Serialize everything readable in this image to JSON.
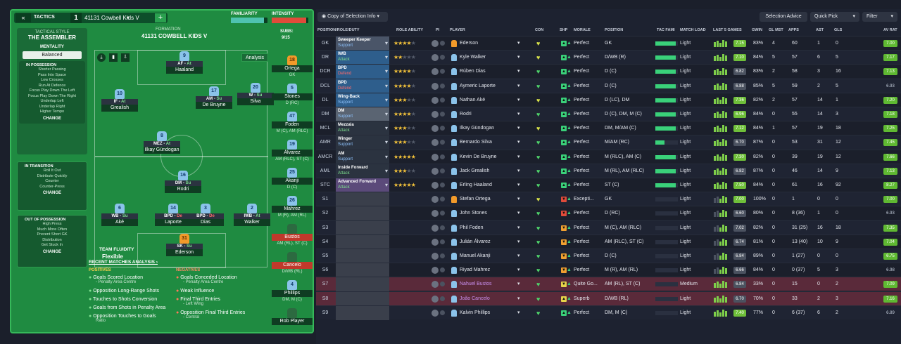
{
  "header": {
    "back": "«",
    "tactics_label": "TACTICS",
    "slot": "1",
    "tactic_name": "41131 Cowbell Kids V",
    "add": "+",
    "familiarity": "FAMILIARITY",
    "intensity": "INTENSITY"
  },
  "style": {
    "heading": "TACTICAL STYLE",
    "name": "THE ASSEMBLER",
    "mentality_label": "MENTALITY",
    "mentality": "Balanced"
  },
  "in_possession": {
    "title": "IN POSSESSION",
    "items": [
      "Shorter Passing",
      "Pass Into Space",
      "Low Crosses",
      "Run At Defence",
      "Focus Play Down The Left",
      "Focus Play Down The Right",
      "Underlap Left",
      "Underlap Right",
      "Higher Tempo"
    ],
    "change": "CHANGE"
  },
  "in_transition": {
    "title": "IN TRANSITION",
    "items": [
      "Roll It Out",
      "Distribute Quickly",
      "Counter",
      "Counter-Press"
    ],
    "change": "CHANGE"
  },
  "out_possession": {
    "title": "OUT OF POSSESSION",
    "items": [
      "High Press",
      "Much More Often",
      "Prevent Short GK",
      "Distribution",
      "Get Stuck In"
    ],
    "change": "CHANGE"
  },
  "formation": {
    "label": "FORMATION",
    "name": "41131 COWBELL KIDS V",
    "subs_label": "SUBS:",
    "subs_count": "9/15",
    "analysis": "Analysis",
    "fluidity_label": "TEAM FLUIDITY",
    "fluidity": "Flexible"
  },
  "pitch_players": [
    {
      "num": "9",
      "role": "AF",
      "duty": "At",
      "name": "Haaland"
    },
    {
      "num": "10",
      "role": "IF",
      "duty": "At",
      "name": "Grealish"
    },
    {
      "num": "17",
      "role": "AM",
      "duty": "Su",
      "name": "De Bruyne"
    },
    {
      "num": "20",
      "role": "W",
      "duty": "Su",
      "name": "Silva"
    },
    {
      "num": "8",
      "role": "MEZ",
      "duty": "At",
      "name": "Ilkay Gündogan"
    },
    {
      "num": "16",
      "role": "DM",
      "duty": "Su",
      "name": "Rodri"
    },
    {
      "num": "6",
      "role": "WB",
      "duty": "Su",
      "name": "Aké"
    },
    {
      "num": "14",
      "role": "BPD",
      "duty": "De",
      "name": "Laporte"
    },
    {
      "num": "3",
      "role": "BPD",
      "duty": "De",
      "name": "Dias"
    },
    {
      "num": "2",
      "role": "IWB",
      "duty": "At",
      "name": "Walker"
    },
    {
      "num": "31",
      "role": "SK",
      "duty": "Su",
      "name": "Ederson"
    }
  ],
  "subs": [
    {
      "num": "18",
      "name": "Ortega",
      "pos": "GK"
    },
    {
      "num": "5",
      "name": "Stones",
      "pos": "D (RC)"
    },
    {
      "num": "47",
      "name": "Foden",
      "pos": "M (C), AM (RLC)"
    },
    {
      "num": "19",
      "name": "Álvarez",
      "pos": "AM (RLC), ST (C)"
    },
    {
      "num": "25",
      "name": "Akanji",
      "pos": "D (C)"
    },
    {
      "num": "26",
      "name": "Mahrez",
      "pos": "M (R), AM (RL)"
    },
    {
      "num": "",
      "name": "Bustos",
      "pos": "AM (RL), ST (C)"
    },
    {
      "num": "",
      "name": "Cancelo",
      "pos": "D/WB (RL)"
    },
    {
      "num": "4",
      "name": "Phillips",
      "pos": "DM, M (C)"
    },
    {
      "num": "",
      "name": "Rob Player",
      "pos": ""
    }
  ],
  "analysis": {
    "title": "RECENT MATCHES ANALYSIS ›",
    "positives_label": "POSITIVES",
    "negatives_label": "NEGATIVES",
    "positives": [
      {
        "t": "Goals Scored Location",
        "s": "- Penalty Area Centre"
      },
      {
        "t": "Opposition Long-Range Shots",
        "s": ""
      },
      {
        "t": "Touches to Shots Conversion",
        "s": ""
      },
      {
        "t": "Goals from Shots in Penalty Area",
        "s": ""
      },
      {
        "t": "Opposition Touches to Goals",
        "s": "Ratio"
      }
    ],
    "negatives": [
      {
        "t": "Goals Conceded Location",
        "s": "- Penalty Area Centre"
      },
      {
        "t": "Weak Influence",
        "s": ""
      },
      {
        "t": "Final Third Entries",
        "s": "- Left Wing"
      },
      {
        "t": "Opposition Final Third Entries",
        "s": "- Central"
      }
    ]
  },
  "toolbar": {
    "copy": "Copy of Selection Info",
    "selection_advice": "Selection Advice",
    "quick_pick": "Quick Pick",
    "filter": "Filter"
  },
  "columns": {
    "posrole": "POSITION/ROLE/DUTY",
    "ability": "ROLE ABILITY",
    "pi": "PI",
    "player": "PLAYER",
    "con": "CON",
    "shp": "SHP",
    "morale": "MORALE",
    "position": "POSITION",
    "tacfam": "TAC FAMI",
    "load": "MATCH LOAD",
    "last5": "LAST 5 GAMES",
    "gwin": "GWIN",
    "glmst": "GL MST",
    "apps": "APPS",
    "ast": "AST",
    "gls": "GLS",
    "avrat": "AV RAT"
  },
  "rows": [
    {
      "pos": "GK",
      "role": "Sweeper Keeper",
      "duty": "Support",
      "stars": 4,
      "player": "Ederson",
      "morale": "Perfect",
      "position": "GK",
      "load": "Light",
      "form": "7.15",
      "gwin": "83%",
      "glmst": "4",
      "apps": "60",
      "ast": "1",
      "gls": "0",
      "av": "7.00"
    },
    {
      "pos": "DR",
      "role": "IWB",
      "duty": "Attack",
      "stars": 2,
      "player": "Kyle Walker",
      "morale": "Perfect",
      "position": "D/WB (R)",
      "load": "Light",
      "form": "7.10",
      "gwin": "84%",
      "glmst": "5",
      "apps": "57",
      "ast": "6",
      "gls": "5",
      "av": "7.17"
    },
    {
      "pos": "DCR",
      "role": "BPD",
      "duty": "Defend",
      "stars": 4,
      "player": "Rúben Dias",
      "morale": "Perfect",
      "position": "D (C)",
      "load": "Light",
      "form": "6.82",
      "gwin": "83%",
      "glmst": "2",
      "apps": "58",
      "ast": "3",
      "gls": "16",
      "av": "7.13"
    },
    {
      "pos": "DCL",
      "role": "BPD",
      "duty": "Defend",
      "stars": 4,
      "player": "Aymeric Laporte",
      "morale": "Perfect",
      "position": "D (C)",
      "load": "Light",
      "form": "6.88",
      "gwin": "85%",
      "glmst": "5",
      "apps": "59",
      "ast": "2",
      "gls": "5",
      "av": "6.93"
    },
    {
      "pos": "DL",
      "role": "Wing-Back",
      "duty": "Support",
      "stars": 3,
      "player": "Nathan Aké",
      "morale": "Perfect",
      "position": "D (LC), DM",
      "load": "Light",
      "form": "7.36",
      "gwin": "82%",
      "glmst": "2",
      "apps": "57",
      "ast": "14",
      "gls": "1",
      "av": "7.20"
    },
    {
      "pos": "DM",
      "role": "DM",
      "duty": "Support",
      "stars": 4,
      "player": "Rodri",
      "morale": "Perfect",
      "position": "D (C), DM, M (C)",
      "load": "Light",
      "form": "6.96",
      "gwin": "84%",
      "glmst": "0",
      "apps": "55",
      "ast": "14",
      "gls": "3",
      "av": "7.18"
    },
    {
      "pos": "MCL",
      "role": "Mezzala",
      "duty": "Attack",
      "stars": 3,
      "player": "Ilkay Gündogan",
      "morale": "Perfect",
      "position": "DM, M/AM (C)",
      "load": "Light",
      "form": "7.12",
      "gwin": "84%",
      "glmst": "1",
      "apps": "57",
      "ast": "19",
      "gls": "18",
      "av": "7.25"
    },
    {
      "pos": "AMR",
      "role": "Winger",
      "duty": "Support",
      "stars": 3,
      "player": "Bernardo Silva",
      "morale": "Perfect",
      "position": "M/AM (RC)",
      "load": "Light",
      "form": "6.70",
      "gwin": "87%",
      "glmst": "0",
      "apps": "53",
      "ast": "31",
      "gls": "12",
      "av": "7.45"
    },
    {
      "pos": "AMCR",
      "role": "AM",
      "duty": "Support",
      "stars": 5,
      "player": "Kevin De Bruyne",
      "morale": "Perfect",
      "position": "M (RLC), AM (C)",
      "load": "Light",
      "form": "7.30",
      "gwin": "82%",
      "glmst": "0",
      "apps": "39",
      "ast": "19",
      "gls": "12",
      "av": "7.66"
    },
    {
      "pos": "AML",
      "role": "Inside Forward",
      "duty": "Attack",
      "stars": 3,
      "player": "Jack Grealish",
      "morale": "Perfect",
      "position": "M (RL), AM (RLC)",
      "load": "Light",
      "form": "6.82",
      "gwin": "87%",
      "glmst": "0",
      "apps": "46",
      "ast": "14",
      "gls": "9",
      "av": "7.13"
    },
    {
      "pos": "STC",
      "role": "Advanced Forward",
      "duty": "Attack",
      "stars": 5,
      "player": "Erling Haaland",
      "morale": "Perfect",
      "position": "ST (C)",
      "load": "Light",
      "form": "7.50",
      "gwin": "84%",
      "glmst": "0",
      "apps": "61",
      "ast": "16",
      "gls": "92",
      "av": "8.27"
    },
    {
      "pos": "S1",
      "player": "Stefan Ortega",
      "morale": "Excepti...",
      "position": "GK",
      "load": "Light",
      "form": "7.00",
      "gwin": "100%",
      "glmst": "0",
      "apps": "1",
      "ast": "0",
      "gls": "0",
      "av": "7.00"
    },
    {
      "pos": "S2",
      "player": "John Stones",
      "morale": "Perfect",
      "position": "D (RC)",
      "load": "Light",
      "form": "6.60",
      "gwin": "80%",
      "glmst": "0",
      "apps": "8 (36)",
      "ast": "1",
      "gls": "0",
      "av": "6.93"
    },
    {
      "pos": "S3",
      "player": "Phil Foden",
      "morale": "Perfect",
      "position": "M (C), AM (RLC)",
      "load": "Light",
      "form": "7.02",
      "gwin": "82%",
      "glmst": "0",
      "apps": "31 (25)",
      "ast": "16",
      "gls": "18",
      "av": "7.35"
    },
    {
      "pos": "S4",
      "player": "Julián Álvarez",
      "morale": "Perfect",
      "position": "AM (RLC), ST (C)",
      "load": "Light",
      "form": "6.74",
      "gwin": "81%",
      "glmst": "0",
      "apps": "13 (40)",
      "ast": "10",
      "gls": "9",
      "av": "7.04"
    },
    {
      "pos": "S5",
      "player": "Manuel Akanji",
      "morale": "Perfect",
      "position": "D (C)",
      "load": "Light",
      "form": "6.84",
      "gwin": "89%",
      "glmst": "0",
      "apps": "1 (27)",
      "ast": "0",
      "gls": "0",
      "av": "6.75"
    },
    {
      "pos": "S6",
      "player": "Riyad Mahrez",
      "morale": "Perfect",
      "position": "M (R), AM (RL)",
      "load": "Light",
      "form": "6.66",
      "gwin": "84%",
      "glmst": "0",
      "apps": "0 (37)",
      "ast": "5",
      "gls": "3",
      "av": "6.98"
    },
    {
      "pos": "S7",
      "player": "Nahuel Bustos",
      "morale": "Quite Go...",
      "position": "AM (RL), ST (C)",
      "load": "Medium",
      "form": "6.84",
      "gwin": "33%",
      "glmst": "0",
      "apps": "15",
      "ast": "0",
      "gls": "2",
      "av": "7.09"
    },
    {
      "pos": "S8",
      "player": "João Cancelo",
      "morale": "Superb",
      "position": "D/WB (RL)",
      "load": "Light",
      "form": "6.70",
      "gwin": "70%",
      "glmst": "0",
      "apps": "33",
      "ast": "2",
      "gls": "3",
      "av": "7.16"
    },
    {
      "pos": "S9",
      "player": "Kalvin Phillips",
      "morale": "Perfect",
      "position": "DM, M (C)",
      "load": "Light",
      "form": "7.40",
      "gwin": "77%",
      "glmst": "0",
      "apps": "6 (37)",
      "ast": "6",
      "gls": "2",
      "av": "6.89"
    }
  ]
}
